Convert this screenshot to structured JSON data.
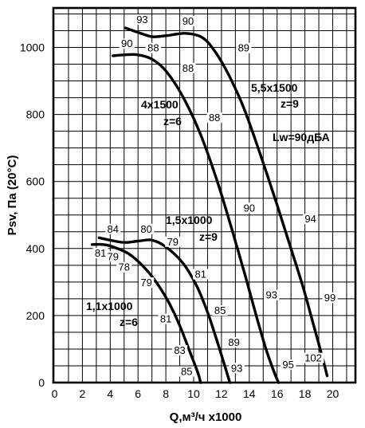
{
  "chart_data": {
    "type": "line",
    "xlabel": "Q,м³/ч x1000",
    "ylabel": "Psv, Па (20°C)",
    "xlim": [
      0,
      20
    ],
    "ylim": [
      0,
      1080
    ],
    "x_ticks": [
      "0",
      "2",
      "4",
      "6",
      "8",
      "10",
      "12",
      "14",
      "16",
      "18",
      "20"
    ],
    "y_ticks": [
      "0",
      "200",
      "400",
      "600",
      "800",
      "1000"
    ],
    "grid": true,
    "note": "Lw=90дБА",
    "series": [
      {
        "label": "1,1x1000 z=6",
        "points": [
          [
            2.7,
            412
          ],
          [
            3.5,
            412
          ],
          [
            4.2,
            405
          ],
          [
            5.3,
            385
          ],
          [
            6.3,
            350
          ],
          [
            7.3,
            300
          ],
          [
            8.2,
            240
          ],
          [
            9,
            170
          ],
          [
            9.7,
            95
          ],
          [
            10.3,
            30
          ],
          [
            10.5,
            0
          ]
        ],
        "values": [
          {
            "text": "81",
            "x": 3.3,
            "y": 378
          },
          {
            "text": "79",
            "x": 4.2,
            "y": 368
          },
          {
            "text": "78",
            "x": 5.0,
            "y": 336
          },
          {
            "text": "79",
            "x": 6.6,
            "y": 290
          },
          {
            "text": "81",
            "x": 8.0,
            "y": 182
          },
          {
            "text": "83",
            "x": 9.0,
            "y": 88
          },
          {
            "text": "85",
            "x": 9.5,
            "y": 25
          }
        ]
      },
      {
        "label": "1,5x1000 z=9",
        "points": [
          [
            3.2,
            432
          ],
          [
            4,
            425
          ],
          [
            5,
            418
          ],
          [
            6,
            422
          ],
          [
            7,
            425
          ],
          [
            8,
            405
          ],
          [
            9.2,
            358
          ],
          [
            10.2,
            290
          ],
          [
            11,
            210
          ],
          [
            11.6,
            135
          ],
          [
            12.2,
            55
          ],
          [
            12.6,
            0
          ]
        ],
        "values": [
          {
            "text": "84",
            "x": 4.2,
            "y": 450
          },
          {
            "text": "80",
            "x": 6.6,
            "y": 450
          },
          {
            "text": "79",
            "x": 8.5,
            "y": 412
          },
          {
            "text": "81",
            "x": 10.5,
            "y": 315
          },
          {
            "text": "85",
            "x": 11.9,
            "y": 207
          },
          {
            "text": "89",
            "x": 12.9,
            "y": 112
          },
          {
            "text": "93",
            "x": 13.1,
            "y": 35
          }
        ]
      },
      {
        "label": "4x1500 z=6",
        "points": [
          [
            4.2,
            975
          ],
          [
            5,
            978
          ],
          [
            6,
            978
          ],
          [
            7,
            965
          ],
          [
            8,
            930
          ],
          [
            9.2,
            855
          ],
          [
            10.5,
            740
          ],
          [
            11.7,
            600
          ],
          [
            12.8,
            450
          ],
          [
            13.7,
            320
          ],
          [
            14.5,
            200
          ],
          [
            15.2,
            100
          ],
          [
            15.8,
            30
          ],
          [
            16.1,
            0
          ]
        ],
        "values": [
          {
            "text": "90",
            "x": 5.2,
            "y": 1003
          },
          {
            "text": "88",
            "x": 7.1,
            "y": 990
          },
          {
            "text": "88",
            "x": 9.6,
            "y": 930
          },
          {
            "text": "88",
            "x": 11.5,
            "y": 782
          },
          {
            "text": "90",
            "x": 14.0,
            "y": 513
          },
          {
            "text": "93",
            "x": 15.6,
            "y": 253
          },
          {
            "text": "95",
            "x": 16.8,
            "y": 45
          }
        ]
      },
      {
        "label": "5,5x1500 z=9",
        "points": [
          [
            5.1,
            1058
          ],
          [
            6,
            1045
          ],
          [
            7,
            1032
          ],
          [
            8,
            1035
          ],
          [
            9.4,
            1042
          ],
          [
            10.6,
            1030
          ],
          [
            11.5,
            990
          ],
          [
            12.5,
            920
          ],
          [
            13.6,
            820
          ],
          [
            14.8,
            680
          ],
          [
            16,
            530
          ],
          [
            17,
            400
          ],
          [
            17.9,
            280
          ],
          [
            18.6,
            175
          ],
          [
            19.2,
            85
          ],
          [
            19.6,
            20
          ]
        ],
        "values": [
          {
            "text": "93",
            "x": 6.3,
            "y": 1075
          },
          {
            "text": "90",
            "x": 9.6,
            "y": 1070
          },
          {
            "text": "89",
            "x": 13.6,
            "y": 990
          },
          {
            "text": "94",
            "x": 18.4,
            "y": 480
          },
          {
            "text": "99",
            "x": 19.8,
            "y": 245
          },
          {
            "text": "102",
            "x": 18.6,
            "y": 65
          }
        ]
      }
    ]
  }
}
